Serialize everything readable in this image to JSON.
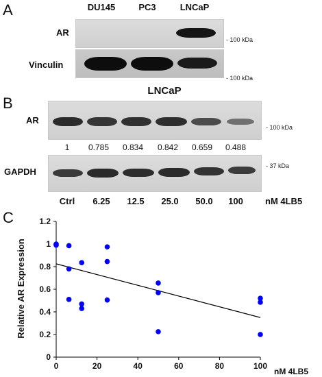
{
  "panel_a": {
    "letter": "A",
    "cell_lines": [
      "DU145",
      "PC3",
      "LNCaP"
    ],
    "rows": [
      {
        "label": "AR",
        "marker": "- 100 kDa"
      },
      {
        "label": "Vinculin",
        "marker": "- 100 kDa"
      }
    ]
  },
  "panel_b": {
    "letter": "B",
    "title": "LNCaP",
    "rows": [
      {
        "label": "AR",
        "marker": "- 100 kDa"
      },
      {
        "label": "GAPDH",
        "marker": "- 37 kDa"
      }
    ],
    "quantification": [
      "1",
      "0.785",
      "0.834",
      "0.842",
      "0.659",
      "0.488"
    ],
    "doses": [
      "Ctrl",
      "6.25",
      "12.5",
      "25.0",
      "50.0",
      "100"
    ],
    "dose_unit": "nM 4LB5"
  },
  "panel_c": {
    "letter": "C"
  },
  "chart_data": {
    "type": "scatter",
    "title": "",
    "xlabel": "nM 4LB5",
    "ylabel": "Relative AR Expression",
    "xlim": [
      0,
      100
    ],
    "ylim": [
      0,
      1.2
    ],
    "xticks": [
      "0",
      "20",
      "40",
      "60",
      "80",
      "100"
    ],
    "yticks": [
      "0",
      "0.2",
      "0.4",
      "0.6",
      "0.8",
      "1",
      "1.2"
    ],
    "point_color": "#0000ff",
    "points": [
      {
        "x": 0,
        "y": 1.0
      },
      {
        "x": 0,
        "y": 0.995
      },
      {
        "x": 0,
        "y": 0.99
      },
      {
        "x": 6.25,
        "y": 0.985
      },
      {
        "x": 6.25,
        "y": 0.78
      },
      {
        "x": 6.25,
        "y": 0.51
      },
      {
        "x": 12.5,
        "y": 0.835
      },
      {
        "x": 12.5,
        "y": 0.47
      },
      {
        "x": 12.5,
        "y": 0.43
      },
      {
        "x": 25,
        "y": 0.975
      },
      {
        "x": 25,
        "y": 0.845
      },
      {
        "x": 25,
        "y": 0.505
      },
      {
        "x": 50,
        "y": 0.655
      },
      {
        "x": 50,
        "y": 0.57
      },
      {
        "x": 50,
        "y": 0.225
      },
      {
        "x": 100,
        "y": 0.52
      },
      {
        "x": 100,
        "y": 0.485
      },
      {
        "x": 100,
        "y": 0.2
      }
    ],
    "trendline": {
      "x": [
        0,
        100
      ],
      "y": [
        0.825,
        0.35
      ]
    }
  }
}
